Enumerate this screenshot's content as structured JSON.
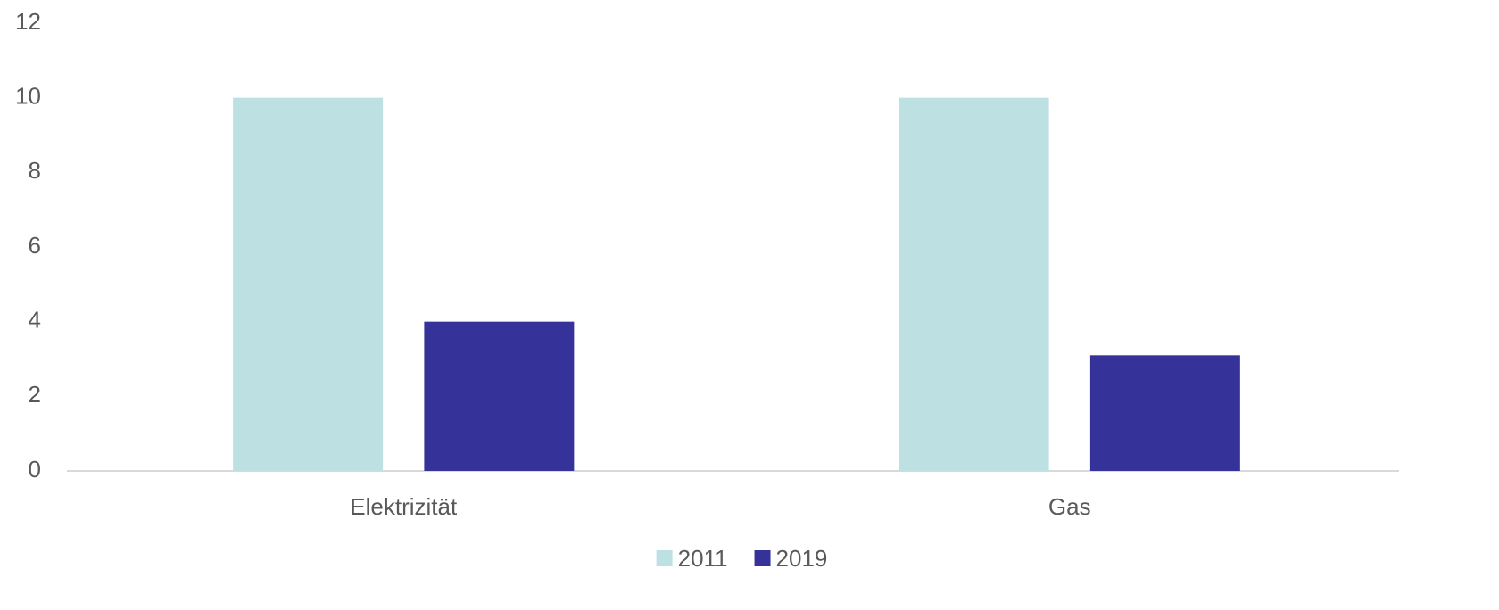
{
  "chart_data": {
    "type": "bar",
    "categories": [
      "Elektrizität",
      "Gas"
    ],
    "series": [
      {
        "name": "2011",
        "color": "#bde0e2",
        "values": [
          10,
          10
        ]
      },
      {
        "name": "2019",
        "color": "#353399",
        "values": [
          4,
          3.1
        ]
      }
    ],
    "ylim": [
      0,
      12
    ],
    "yticks": [
      0,
      2,
      4,
      6,
      8,
      10,
      12
    ],
    "grid": false,
    "legend": "bottom"
  }
}
